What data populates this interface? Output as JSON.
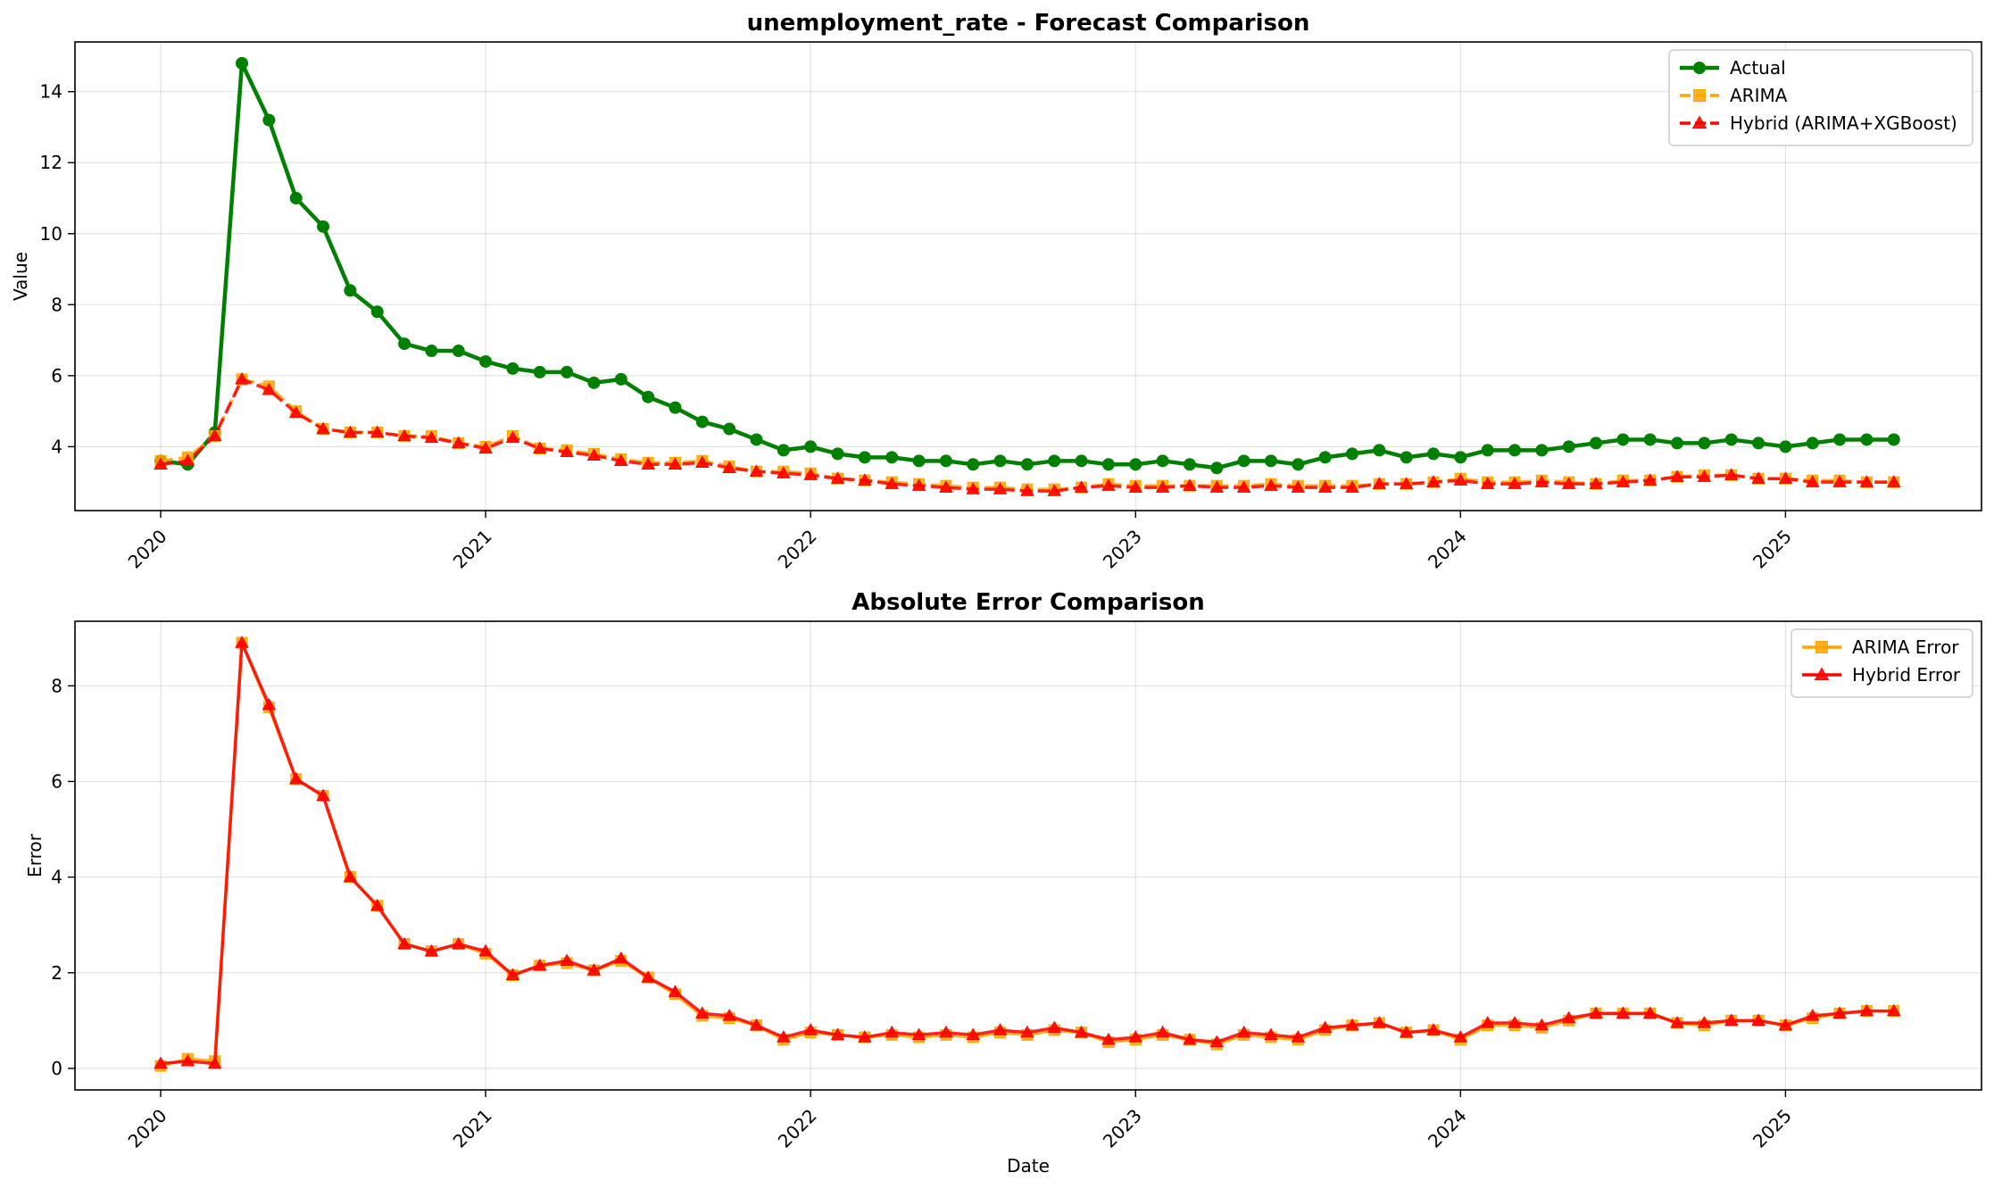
{
  "chart_data": [
    {
      "type": "line",
      "title": "unemployment_rate - Forecast Comparison",
      "xlabel": "",
      "ylabel": "Value",
      "x_start": "2020-01",
      "x_frequency": "monthly",
      "x_ticks": [
        "2020",
        "2021",
        "2022",
        "2023",
        "2024",
        "2025"
      ],
      "ylim": [
        2.2,
        15.4
      ],
      "y_ticks": [
        4,
        6,
        8,
        10,
        12,
        14
      ],
      "grid": true,
      "legend_position": "top-right",
      "series": [
        {
          "name": "Actual",
          "color": "#008000",
          "marker": "circle",
          "dash": "solid",
          "values": [
            3.6,
            3.5,
            4.4,
            14.8,
            13.2,
            11.0,
            10.2,
            8.4,
            7.8,
            6.9,
            6.7,
            6.7,
            6.4,
            6.2,
            6.1,
            6.1,
            5.8,
            5.9,
            5.4,
            5.1,
            4.7,
            4.5,
            4.2,
            3.9,
            4.0,
            3.8,
            3.7,
            3.7,
            3.6,
            3.6,
            3.5,
            3.6,
            3.5,
            3.6,
            3.6,
            3.5,
            3.5,
            3.6,
            3.5,
            3.4,
            3.6,
            3.6,
            3.5,
            3.7,
            3.8,
            3.9,
            3.7,
            3.8,
            3.7,
            3.9,
            3.9,
            3.9,
            4.0,
            4.1,
            4.2,
            4.2,
            4.1,
            4.1,
            4.2,
            4.1,
            4.0,
            4.1,
            4.2,
            4.2,
            4.2
          ]
        },
        {
          "name": "ARIMA",
          "color": "#ffa500",
          "marker": "square",
          "dash": "dashed",
          "values": [
            3.6,
            3.7,
            4.3,
            5.9,
            5.7,
            5.0,
            4.5,
            4.4,
            4.4,
            4.3,
            4.3,
            4.1,
            4.0,
            4.3,
            3.95,
            3.9,
            3.8,
            3.65,
            3.55,
            3.55,
            3.6,
            3.45,
            3.3,
            3.3,
            3.25,
            3.1,
            3.05,
            3.0,
            2.95,
            2.9,
            2.85,
            2.85,
            2.8,
            2.8,
            2.85,
            2.95,
            2.9,
            2.9,
            2.9,
            2.9,
            2.9,
            2.95,
            2.9,
            2.9,
            2.9,
            2.95,
            2.95,
            3.0,
            3.1,
            3.0,
            3.0,
            3.05,
            3.0,
            2.95,
            3.05,
            3.05,
            3.15,
            3.2,
            3.2,
            3.1,
            3.1,
            3.05,
            3.05,
            3.0,
            3.0
          ]
        },
        {
          "name": "Hybrid (ARIMA+XGBoost)",
          "color": "#ff0000",
          "marker": "triangle",
          "dash": "dashed",
          "values": [
            3.5,
            3.6,
            4.3,
            5.9,
            5.6,
            4.95,
            4.5,
            4.4,
            4.4,
            4.3,
            4.25,
            4.1,
            3.95,
            4.25,
            3.95,
            3.85,
            3.75,
            3.6,
            3.5,
            3.5,
            3.55,
            3.4,
            3.3,
            3.25,
            3.2,
            3.1,
            3.05,
            2.95,
            2.9,
            2.85,
            2.8,
            2.8,
            2.75,
            2.75,
            2.85,
            2.9,
            2.85,
            2.85,
            2.9,
            2.85,
            2.85,
            2.9,
            2.85,
            2.85,
            2.85,
            2.95,
            2.95,
            3.0,
            3.05,
            2.95,
            2.95,
            3.0,
            2.95,
            2.95,
            3.0,
            3.05,
            3.15,
            3.15,
            3.2,
            3.1,
            3.1,
            3.0,
            3.0,
            3.0,
            3.0
          ]
        }
      ]
    },
    {
      "type": "line",
      "title": "Absolute Error Comparison",
      "xlabel": "Date",
      "ylabel": "Error",
      "x_start": "2020-01",
      "x_frequency": "monthly",
      "x_ticks": [
        "2020",
        "2021",
        "2022",
        "2023",
        "2024",
        "2025"
      ],
      "ylim": [
        -0.45,
        9.35
      ],
      "y_ticks": [
        0,
        2,
        4,
        6,
        8
      ],
      "grid": true,
      "legend_position": "top-right",
      "series": [
        {
          "name": "ARIMA Error",
          "color": "#ffa500",
          "marker": "square",
          "dash": "solid",
          "values": [
            0.05,
            0.2,
            0.15,
            8.9,
            7.55,
            6.05,
            5.7,
            4.0,
            3.4,
            2.6,
            2.45,
            2.6,
            2.4,
            1.95,
            2.15,
            2.2,
            2.05,
            2.25,
            1.9,
            1.55,
            1.1,
            1.05,
            0.9,
            0.6,
            0.75,
            0.7,
            0.65,
            0.7,
            0.65,
            0.7,
            0.65,
            0.75,
            0.7,
            0.8,
            0.75,
            0.55,
            0.6,
            0.7,
            0.6,
            0.5,
            0.7,
            0.65,
            0.6,
            0.8,
            0.9,
            0.95,
            0.75,
            0.8,
            0.6,
            0.9,
            0.9,
            0.85,
            1.0,
            1.15,
            1.15,
            1.15,
            0.95,
            0.9,
            1.0,
            1.0,
            0.9,
            1.05,
            1.15,
            1.2,
            1.2
          ]
        },
        {
          "name": "Hybrid Error",
          "color": "#ff0000",
          "marker": "triangle",
          "dash": "solid",
          "values": [
            0.1,
            0.15,
            0.1,
            8.9,
            7.6,
            6.05,
            5.7,
            4.0,
            3.4,
            2.6,
            2.45,
            2.6,
            2.45,
            1.95,
            2.15,
            2.25,
            2.05,
            2.3,
            1.9,
            1.6,
            1.15,
            1.1,
            0.9,
            0.65,
            0.8,
            0.7,
            0.65,
            0.75,
            0.7,
            0.75,
            0.7,
            0.8,
            0.75,
            0.85,
            0.75,
            0.6,
            0.65,
            0.75,
            0.6,
            0.55,
            0.75,
            0.7,
            0.65,
            0.85,
            0.9,
            0.95,
            0.75,
            0.8,
            0.65,
            0.95,
            0.95,
            0.9,
            1.05,
            1.15,
            1.15,
            1.15,
            0.95,
            0.95,
            1.0,
            1.0,
            0.9,
            1.1,
            1.15,
            1.2,
            1.2
          ]
        }
      ]
    }
  ]
}
